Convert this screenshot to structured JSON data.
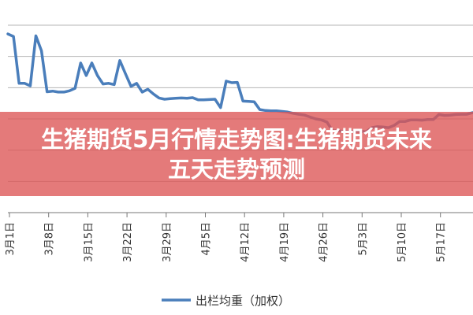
{
  "overlay": {
    "title": "生猪期货5月行情走势图:生猪期货未来五天走势预测"
  },
  "colors": {
    "series": "#4a7ebb",
    "grid": "#b4b4b4",
    "axis": "#777777",
    "banner": "#dd5454"
  },
  "chart_data": {
    "type": "line",
    "title": "",
    "xlabel": "",
    "ylabel": "",
    "grid": true,
    "legend_position": "bottom",
    "x_tick_labels": [
      "3月1日",
      "3月8日",
      "3月15日",
      "3月22日",
      "3月29日",
      "4月5日",
      "4月12日",
      "4月19日",
      "4月26日",
      "5月3日",
      "5月10日",
      "5月17日"
    ],
    "x_tick_days": [
      0,
      7,
      14,
      21,
      28,
      35,
      42,
      49,
      56,
      63,
      70,
      77
    ],
    "y_grid_levels": 6,
    "series": [
      {
        "name": "出栏均重（加权）",
        "x": [
          0,
          1,
          2,
          3,
          4,
          5,
          6,
          7,
          8,
          9,
          10,
          11,
          12,
          13,
          14,
          15,
          16,
          17,
          18,
          19,
          20,
          21,
          22,
          23,
          24,
          25,
          26,
          27,
          28,
          29,
          30,
          31,
          32,
          33,
          34,
          35,
          36,
          37,
          38,
          39,
          40,
          41,
          42,
          43,
          44,
          45,
          46,
          47,
          48,
          49,
          50,
          51,
          52,
          53,
          54,
          55,
          56,
          57,
          58,
          59,
          60,
          61,
          62,
          63,
          64,
          65,
          66,
          67,
          68,
          69,
          70,
          71,
          72,
          73,
          74,
          75,
          76,
          77,
          78,
          79,
          80,
          81,
          82,
          83
        ],
        "y": [
          5.72,
          5.64,
          4.14,
          4.14,
          4.06,
          5.66,
          5.18,
          3.87,
          3.89,
          3.86,
          3.86,
          3.9,
          3.98,
          4.79,
          4.39,
          4.79,
          4.39,
          4.12,
          4.14,
          4.1,
          4.87,
          4.45,
          4.04,
          4.14,
          3.86,
          3.95,
          3.8,
          3.67,
          3.63,
          3.65,
          3.66,
          3.67,
          3.66,
          3.68,
          3.61,
          3.61,
          3.62,
          3.63,
          3.36,
          4.21,
          4.16,
          4.17,
          3.57,
          3.56,
          3.55,
          3.3,
          3.27,
          3.26,
          3.26,
          3.24,
          3.22,
          3.18,
          3.15,
          3.12,
          3.06,
          3.0,
          2.97,
          2.9,
          2.62,
          2.62,
          2.6,
          2.59,
          2.6,
          2.6,
          2.59,
          2.72,
          2.75,
          2.74,
          2.72,
          2.79,
          2.92,
          2.92,
          2.97,
          2.97,
          2.96,
          2.98,
          2.98,
          3.14,
          3.11,
          3.12,
          3.14,
          3.15,
          3.15,
          3.2
        ]
      }
    ]
  }
}
